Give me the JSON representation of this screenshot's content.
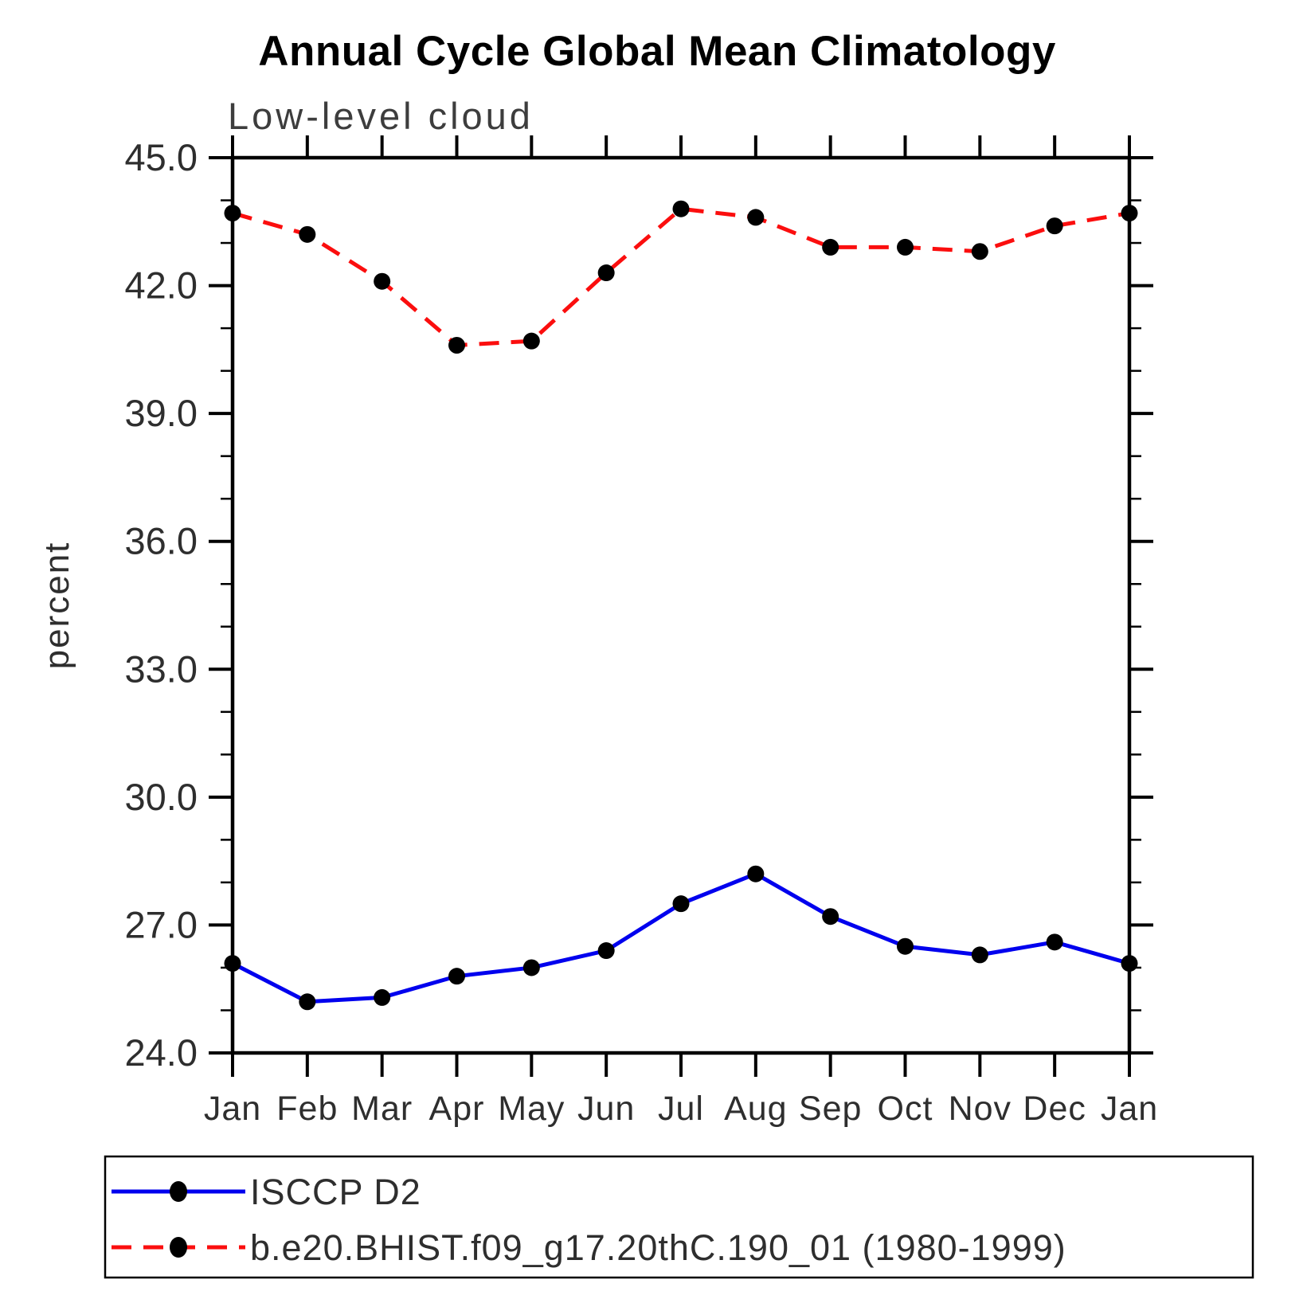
{
  "title": "Annual Cycle Global Mean Climatology",
  "chart_data": {
    "type": "line",
    "title": "Annual Cycle Global Mean Climatology",
    "subtitle": "Low-level cloud",
    "ylabel": "percent",
    "xlabel": "",
    "x": [
      "Jan",
      "Feb",
      "Mar",
      "Apr",
      "May",
      "Jun",
      "Jul",
      "Aug",
      "Sep",
      "Oct",
      "Nov",
      "Dec",
      "Jan"
    ],
    "ylim": [
      24.0,
      45.0
    ],
    "yticks_major": [
      24,
      27,
      30,
      33,
      36,
      39,
      42,
      45
    ],
    "ytick_labels": [
      "24.0",
      "27.0",
      "30.0",
      "33.0",
      "36.0",
      "39.0",
      "42.0",
      "45.0"
    ],
    "ytick_minor_step": 1.0,
    "grid": false,
    "legend_position": "bottom",
    "series": [
      {
        "name": "ISCCP D2",
        "color": "#0000ee",
        "line_style": "solid",
        "marker": "filled-circle",
        "marker_color": "#000000",
        "values": [
          26.1,
          25.2,
          25.3,
          25.8,
          26.0,
          26.4,
          27.5,
          28.2,
          27.2,
          26.5,
          26.3,
          26.6,
          26.1
        ]
      },
      {
        "name": "b.e20.BHIST.f09_g17.20thC.190_01 (1980-1999)",
        "color": "#fb0e0e",
        "line_style": "dashed",
        "marker": "filled-circle",
        "marker_color": "#000000",
        "values": [
          43.7,
          43.2,
          42.1,
          40.6,
          40.7,
          42.3,
          43.8,
          43.6,
          42.9,
          42.9,
          42.8,
          43.4,
          43.7
        ]
      }
    ]
  },
  "colors": {
    "axis": "#000000",
    "marker": "#000000",
    "subtitle_text": "#3d3d3d",
    "tick_label_text": "#2e2e2e",
    "series_isccp": "#0000ee",
    "series_model": "#fb0e0e"
  }
}
